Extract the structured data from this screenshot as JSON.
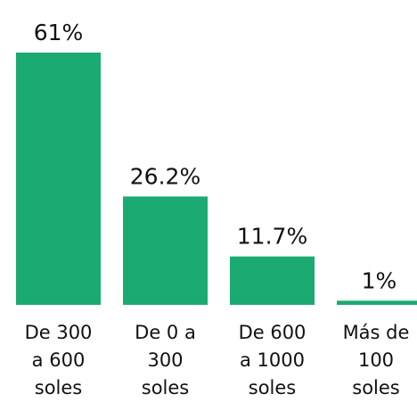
{
  "chart_data": {
    "type": "bar",
    "categories": [
      "De 300 a 600 soles",
      "De 0 a 300 soles",
      "De 600 a 1000 soles",
      "Más de 100 soles"
    ],
    "values": [
      61,
      26.2,
      11.7,
      1
    ],
    "value_labels": [
      "61%",
      "26.2%",
      "11.7%",
      "1%"
    ],
    "color": "#1aaa72"
  }
}
